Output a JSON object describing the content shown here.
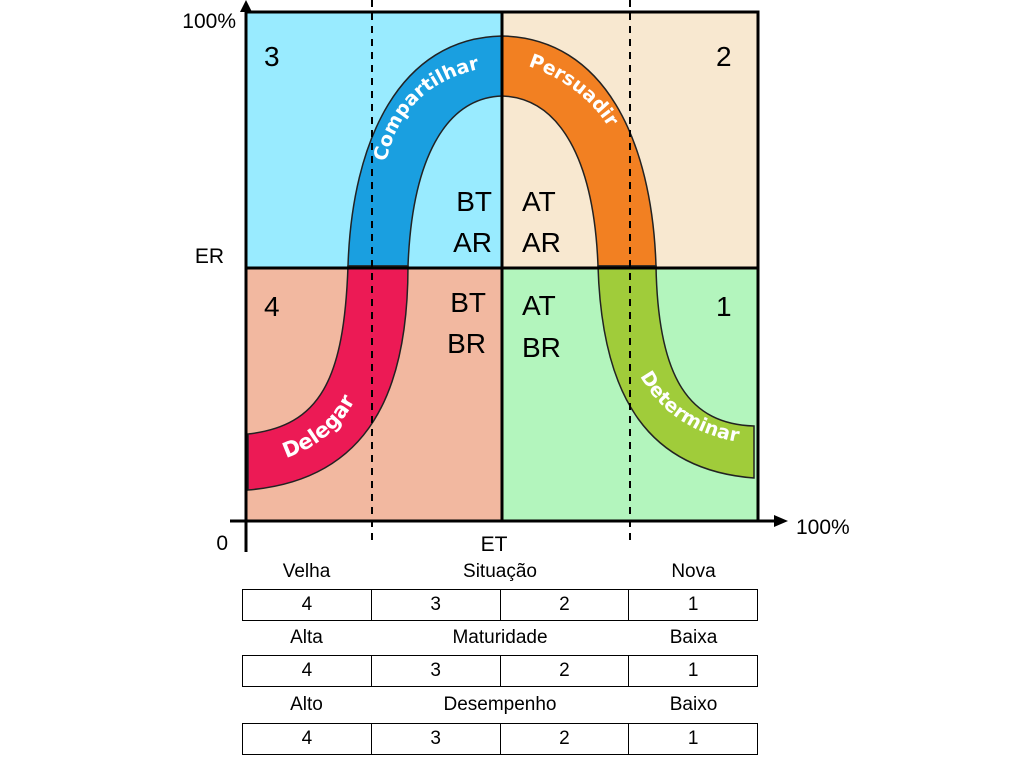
{
  "axes": {
    "y_max_label": "100%",
    "y_label": "ER",
    "x_max_label": "100%",
    "x_label": "ET",
    "origin_label": "0"
  },
  "quadrants": [
    {
      "number": "3",
      "line1": "BT",
      "line2": "AR",
      "color": "#99ebff"
    },
    {
      "number": "2",
      "line1": "AT",
      "line2": "AR",
      "color": "#f8e8d0"
    },
    {
      "number": "4",
      "line1": "BT",
      "line2": "BR",
      "color": "#f2b8a0"
    },
    {
      "number": "1",
      "line1": "AT",
      "line2": "BR",
      "color": "#b3f5bd"
    }
  ],
  "bands": {
    "share": {
      "label": "Compartilhar",
      "color": "#1a9fe0"
    },
    "persuade": {
      "label": "Persuadir",
      "color": "#f28022"
    },
    "delegate": {
      "label": "Delegar",
      "color": "#ec1a55"
    },
    "determine": {
      "label": "Determinar",
      "color": "#a0cc3a"
    }
  },
  "tables": [
    {
      "left": "Velha",
      "center": "Situação",
      "right": "Nova",
      "values": [
        "4",
        "3",
        "2",
        "1"
      ]
    },
    {
      "left": "Alta",
      "center": "Maturidade",
      "right": "Baixa",
      "values": [
        "4",
        "3",
        "2",
        "1"
      ]
    },
    {
      "left": "Alto",
      "center": "Desempenho",
      "right": "Baixo",
      "values": [
        "4",
        "3",
        "2",
        "1"
      ]
    }
  ]
}
